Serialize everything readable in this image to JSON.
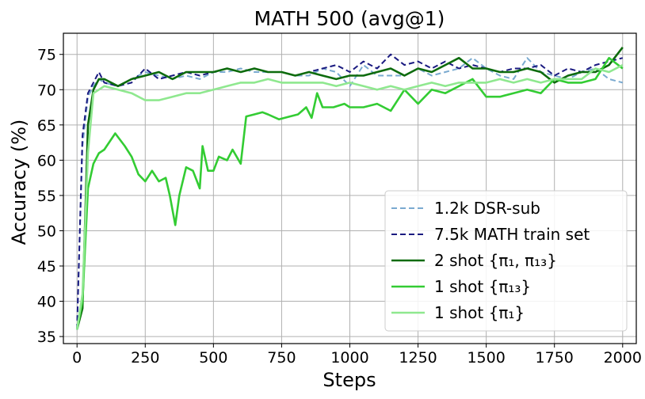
{
  "chart_data": {
    "type": "line",
    "title": "MATH 500 (avg@1)",
    "xlabel": "Steps",
    "ylabel": "Accuracy (%)",
    "xlim": [
      -50,
      2050
    ],
    "ylim": [
      34,
      78
    ],
    "xticks": [
      0,
      250,
      500,
      750,
      1000,
      1250,
      1500,
      1750,
      2000
    ],
    "yticks": [
      35,
      40,
      45,
      50,
      55,
      60,
      65,
      70,
      75
    ],
    "grid": true,
    "legend_position": "lower-right",
    "series": [
      {
        "name": "1.2k DSR-sub",
        "color": "#7aaad0",
        "dash": "dashed",
        "x": [
          0,
          20,
          40,
          60,
          80,
          100,
          150,
          200,
          250,
          300,
          350,
          400,
          450,
          500,
          550,
          600,
          650,
          700,
          750,
          800,
          850,
          900,
          950,
          1000,
          1050,
          1100,
          1150,
          1200,
          1250,
          1300,
          1350,
          1400,
          1450,
          1500,
          1550,
          1600,
          1650,
          1700,
          1750,
          1800,
          1850,
          1900,
          1950,
          2000
        ],
        "y": [
          36,
          62,
          69,
          70.5,
          71.5,
          71,
          70.5,
          71.5,
          72.5,
          72,
          71.5,
          72,
          71.5,
          72.5,
          72.5,
          73,
          72.5,
          72.5,
          72.5,
          72,
          72,
          73,
          72.5,
          70.5,
          73.5,
          72,
          72,
          72,
          73,
          72,
          72.5,
          73,
          74.5,
          73,
          72,
          71.5,
          74.5,
          72.5,
          72,
          71.5,
          72.5,
          73,
          71.5,
          71
        ]
      },
      {
        "name": "7.5k MATH train set",
        "color": "#1a1a80",
        "dash": "dashed",
        "x": [
          0,
          20,
          40,
          60,
          80,
          100,
          150,
          200,
          250,
          300,
          350,
          400,
          450,
          500,
          550,
          600,
          650,
          700,
          750,
          800,
          850,
          900,
          950,
          1000,
          1050,
          1100,
          1150,
          1200,
          1250,
          1300,
          1350,
          1400,
          1450,
          1500,
          1550,
          1600,
          1650,
          1700,
          1750,
          1800,
          1850,
          1900,
          1950,
          2000
        ],
        "y": [
          36,
          63.5,
          69.5,
          71,
          72.5,
          71,
          70.5,
          71,
          73,
          71.5,
          72,
          72.5,
          72,
          72.5,
          73,
          72.5,
          73,
          72.5,
          72.5,
          72,
          72.5,
          73,
          73.5,
          72.5,
          74,
          73,
          75,
          73.5,
          74,
          73,
          74,
          73,
          73.5,
          73,
          72.5,
          73,
          73,
          73.5,
          72,
          73,
          72.5,
          73.5,
          74,
          74.5
        ]
      },
      {
        "name": "2 shot {π₁, π₁₃}",
        "color": "#0d6b0d",
        "dash": "solid",
        "x": [
          0,
          20,
          40,
          60,
          80,
          100,
          150,
          200,
          250,
          300,
          350,
          400,
          450,
          500,
          550,
          600,
          650,
          700,
          750,
          800,
          850,
          900,
          950,
          1000,
          1050,
          1100,
          1150,
          1200,
          1250,
          1300,
          1350,
          1400,
          1450,
          1500,
          1550,
          1600,
          1650,
          1700,
          1750,
          1800,
          1850,
          1900,
          1950,
          2000
        ],
        "y": [
          36,
          39,
          65,
          70,
          71.5,
          71.5,
          70.5,
          71.5,
          72,
          72.5,
          71.5,
          72.5,
          72.5,
          72.5,
          73,
          72.5,
          73,
          72.5,
          72.5,
          72,
          72.5,
          72,
          71.5,
          72,
          72,
          72.5,
          73,
          72,
          73,
          72.5,
          73.5,
          74.5,
          73,
          73,
          72.5,
          72.5,
          73,
          72.5,
          71,
          72,
          72.5,
          72.5,
          73.5,
          76
        ]
      },
      {
        "name": "1 shot {π₁₃}",
        "color": "#33cc33",
        "dash": "solid",
        "x": [
          0,
          20,
          40,
          60,
          80,
          100,
          140,
          175,
          200,
          225,
          250,
          275,
          300,
          325,
          340,
          360,
          375,
          400,
          425,
          450,
          460,
          480,
          500,
          520,
          550,
          570,
          600,
          620,
          650,
          680,
          700,
          740,
          780,
          810,
          840,
          860,
          880,
          900,
          940,
          980,
          1000,
          1050,
          1100,
          1150,
          1200,
          1250,
          1300,
          1350,
          1400,
          1450,
          1500,
          1550,
          1600,
          1650,
          1700,
          1750,
          1800,
          1850,
          1900,
          1950,
          2000
        ],
        "y": [
          36,
          40,
          56,
          59.5,
          61,
          61.5,
          63.8,
          62,
          60.5,
          58,
          57,
          58.5,
          57,
          57.5,
          55,
          50.8,
          55,
          59,
          58.5,
          56,
          62,
          58.5,
          58.5,
          60.5,
          60,
          61.5,
          59.5,
          66.2,
          66.5,
          66.8,
          66.5,
          65.8,
          66.2,
          66.5,
          67.5,
          66,
          69.5,
          67.5,
          67.5,
          68,
          67.5,
          67.5,
          68,
          67,
          70,
          68,
          70,
          69.5,
          70.5,
          71.5,
          69,
          69,
          69.5,
          70,
          69.5,
          71.5,
          71,
          71,
          71.5,
          74.5,
          73
        ]
      },
      {
        "name": "1 shot {π₁}",
        "color": "#8fe88f",
        "dash": "solid",
        "x": [
          0,
          20,
          40,
          60,
          80,
          100,
          150,
          200,
          250,
          300,
          350,
          400,
          450,
          500,
          550,
          600,
          650,
          700,
          750,
          800,
          850,
          900,
          950,
          1000,
          1050,
          1100,
          1150,
          1200,
          1250,
          1300,
          1350,
          1400,
          1450,
          1500,
          1550,
          1600,
          1650,
          1700,
          1750,
          1800,
          1850,
          1900,
          1950,
          2000
        ],
        "y": [
          36,
          41,
          61,
          69.5,
          70,
          70.5,
          70,
          69.5,
          68.5,
          68.5,
          69,
          69.5,
          69.5,
          70,
          70.5,
          71,
          71,
          71.5,
          71,
          71,
          71,
          71,
          70.5,
          71,
          70.5,
          70,
          70.5,
          70,
          70.5,
          71,
          70.5,
          71,
          71,
          71,
          71.5,
          71,
          71.5,
          71,
          71.5,
          71.5,
          71.5,
          73,
          72.5,
          73.5
        ]
      }
    ]
  }
}
